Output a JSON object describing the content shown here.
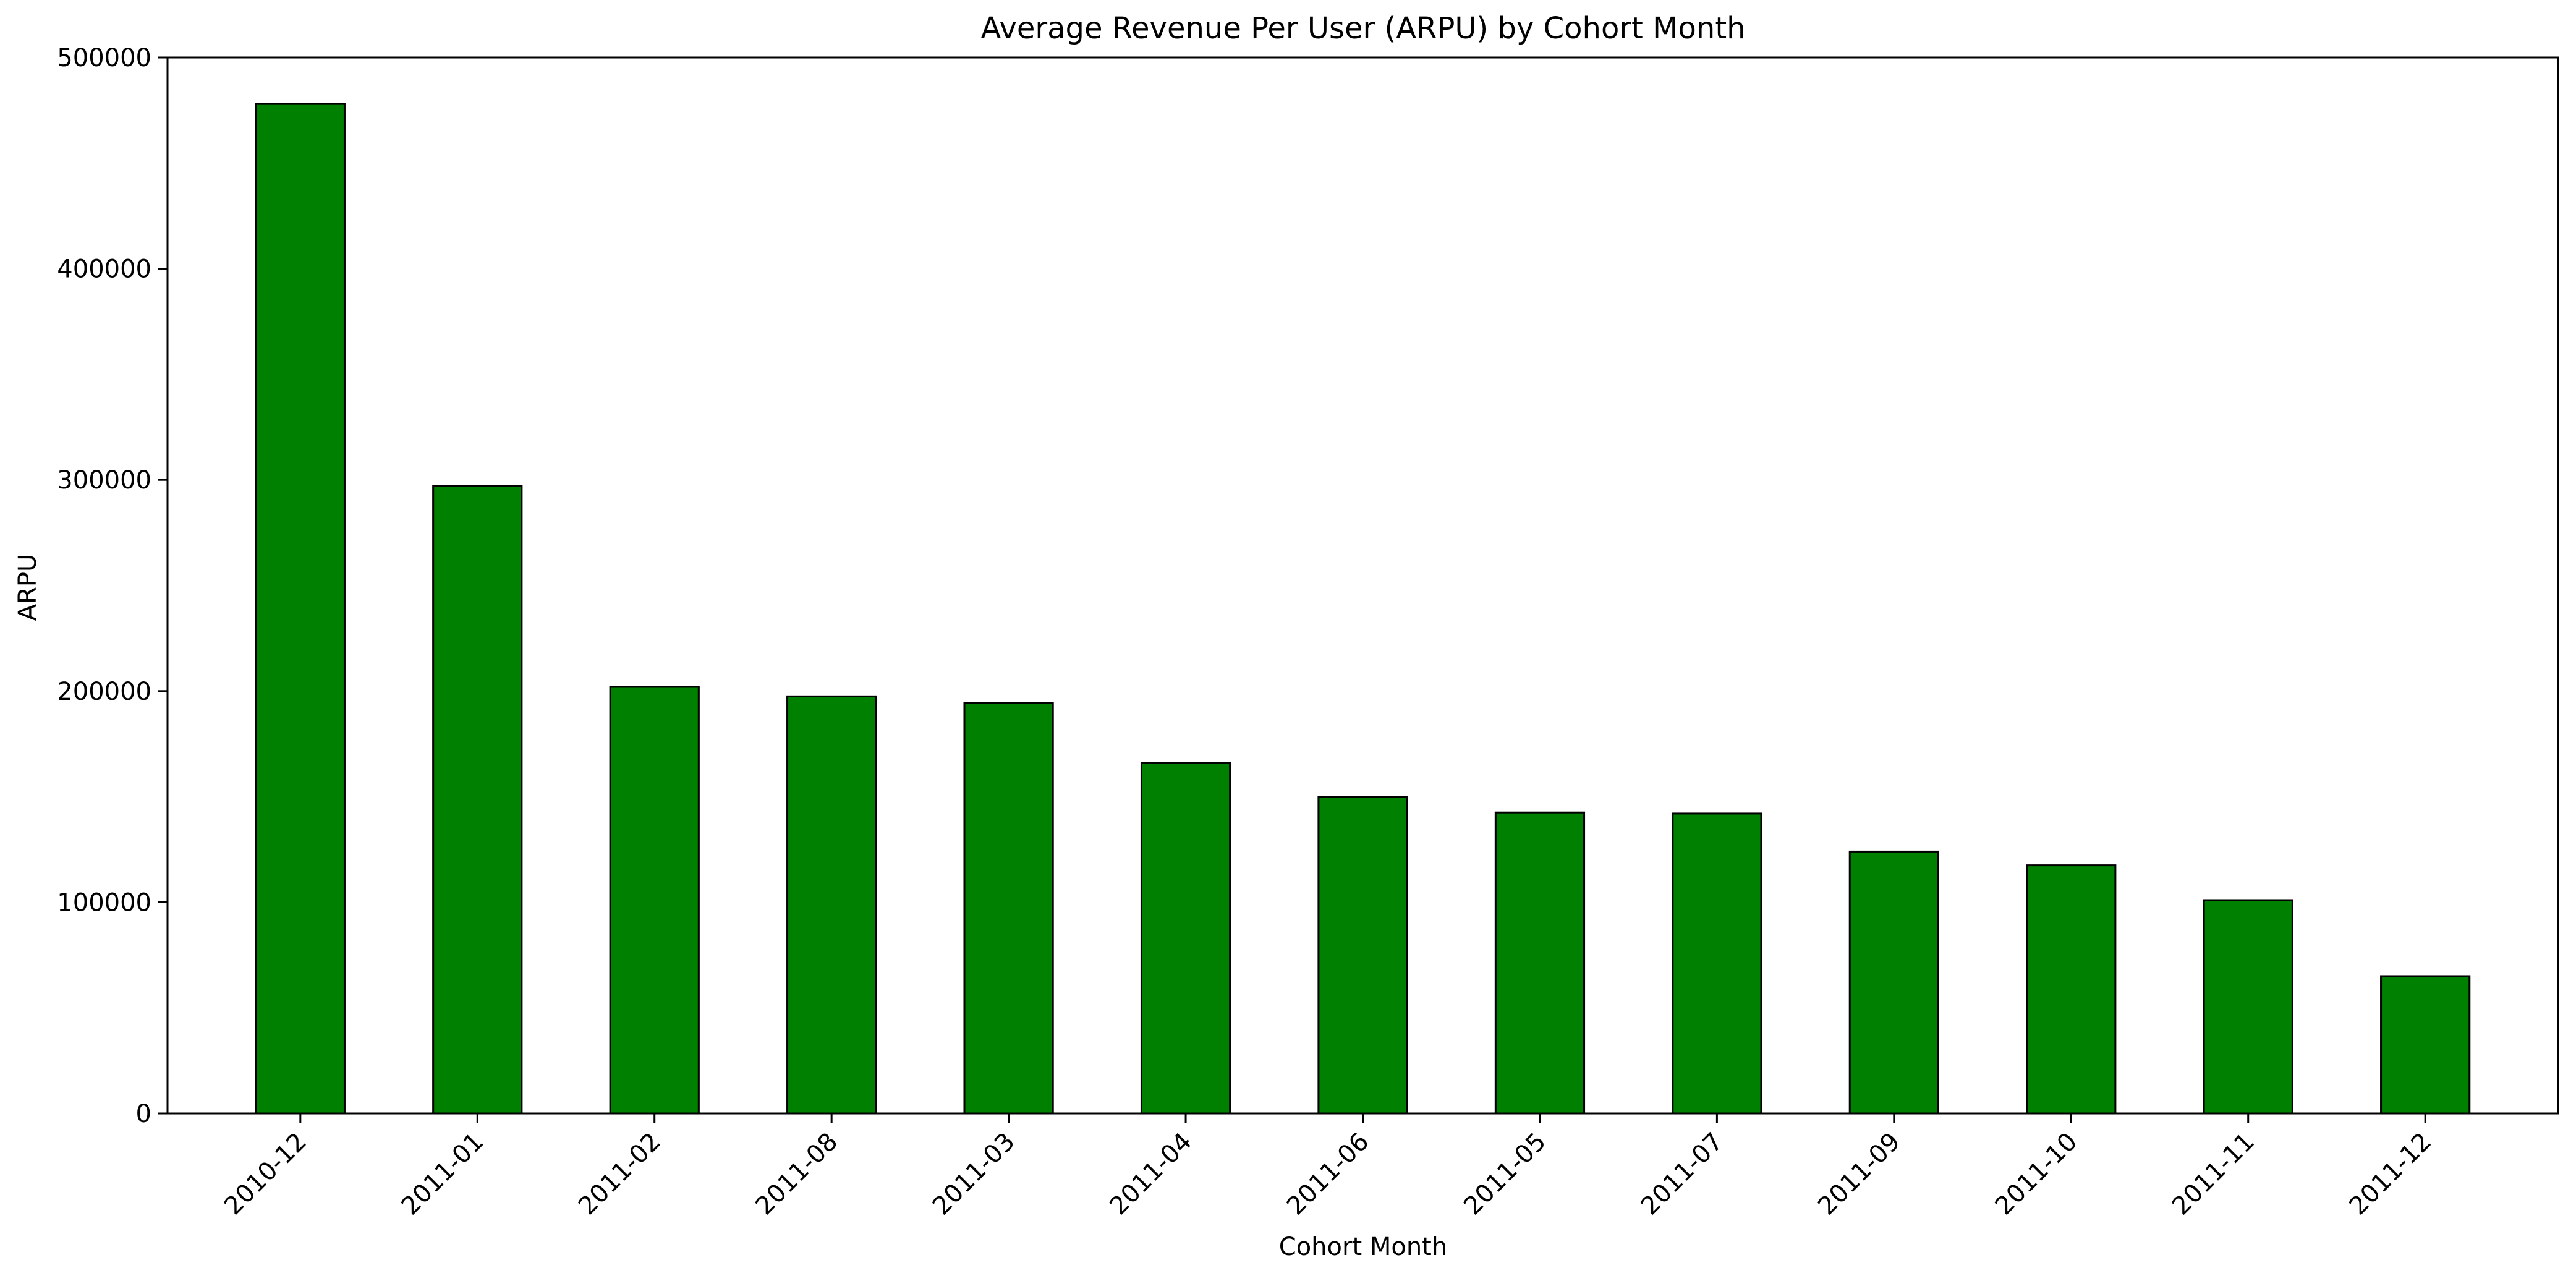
{
  "chart_data": {
    "type": "bar",
    "title": "Average Revenue Per User (ARPU) by Cohort Month",
    "xlabel": "Cohort Month",
    "ylabel": "ARPU",
    "categories": [
      "2010-12",
      "2011-01",
      "2011-02",
      "2011-08",
      "2011-03",
      "2011-04",
      "2011-06",
      "2011-05",
      "2011-07",
      "2011-09",
      "2011-10",
      "2011-11",
      "2011-12"
    ],
    "values": [
      478000,
      297000,
      202000,
      197500,
      194500,
      166000,
      150000,
      142500,
      142000,
      124000,
      117500,
      101000,
      65000
    ],
    "ylim": [
      0,
      500000
    ],
    "yticks": [
      0,
      100000,
      200000,
      300000,
      400000,
      500000
    ],
    "ytick_labels": [
      "0",
      "100000",
      "200000",
      "300000",
      "400000",
      "500000"
    ],
    "bar_color": "#008000",
    "bar_edge_color": "#000000",
    "grid": false,
    "legend": "none"
  }
}
